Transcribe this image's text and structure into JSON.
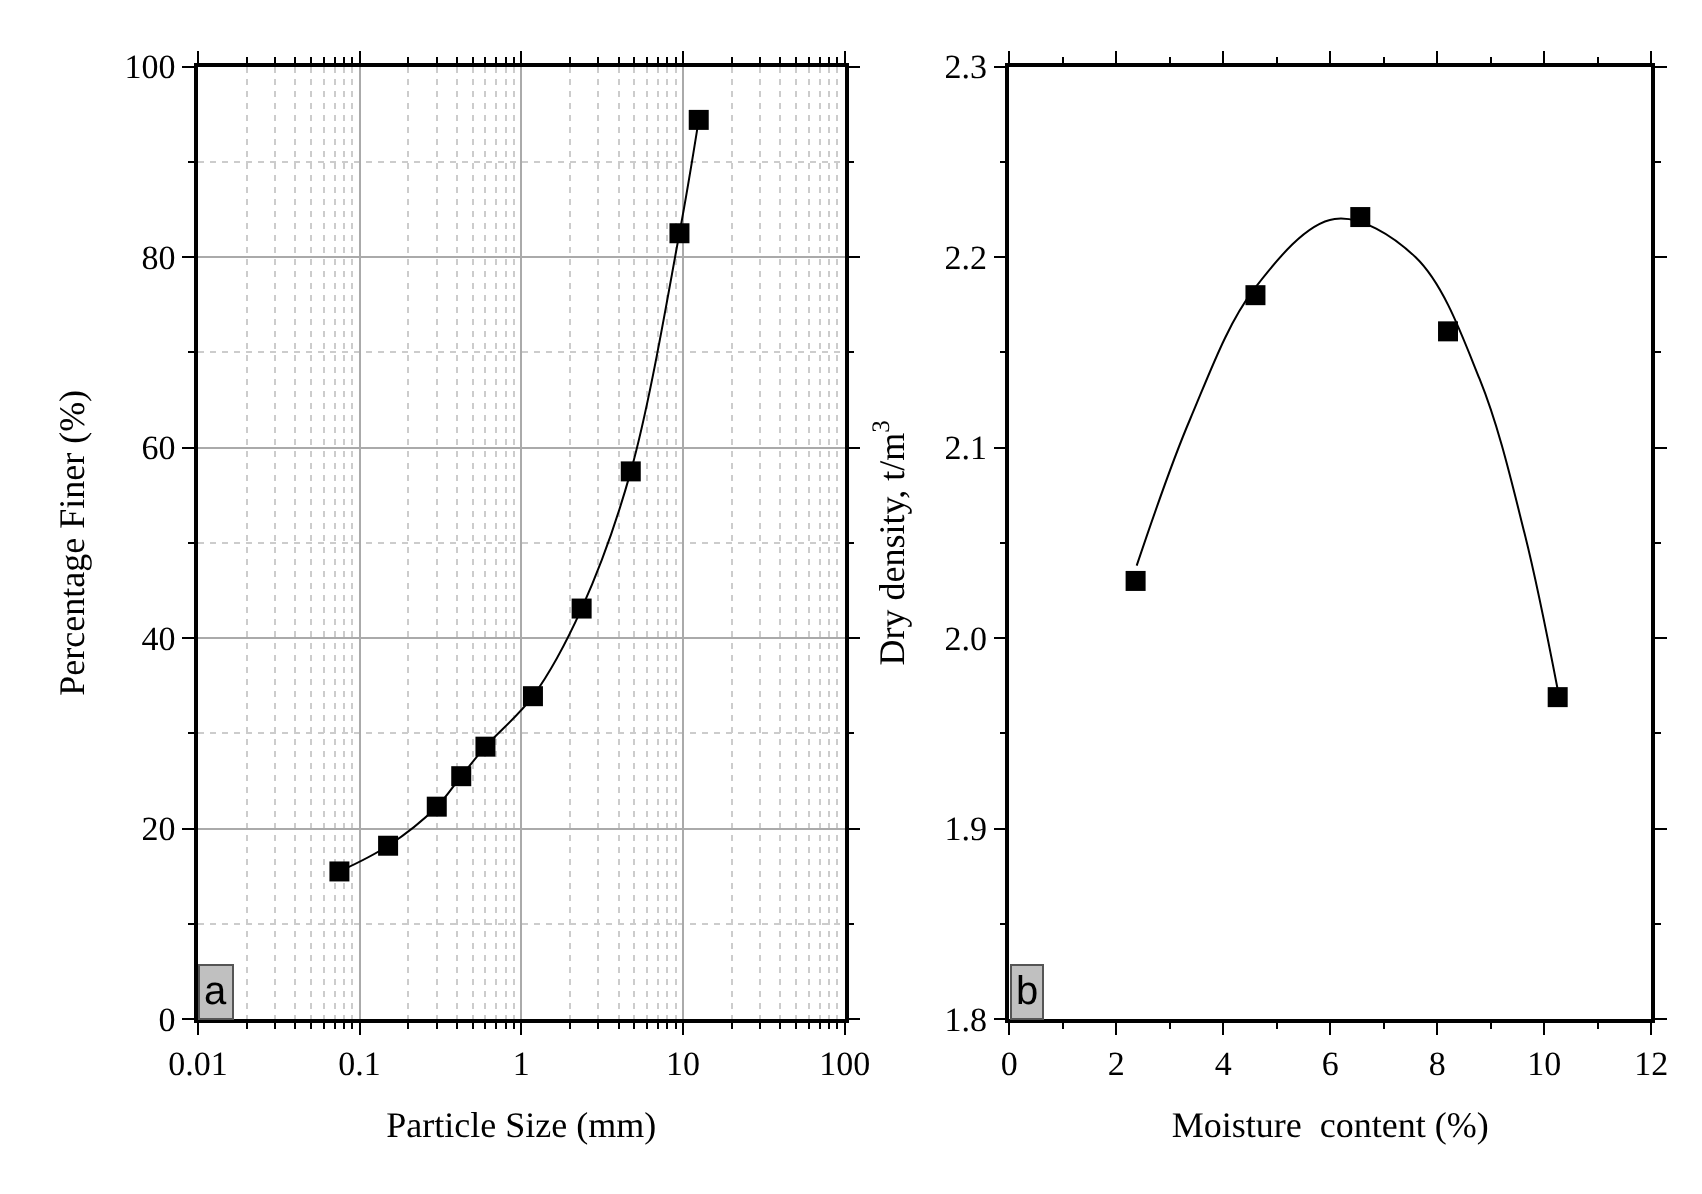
{
  "chart_data": [
    {
      "type": "line",
      "xlabel": "Particle Size (mm)",
      "ylabel": "Percentage Finer (%)",
      "log": "x",
      "x": [
        0.075,
        0.15,
        0.3,
        0.425,
        0.6,
        1.18,
        2.36,
        4.75,
        9.5,
        12.5
      ],
      "series": [
        {
          "color": "#000000",
          "values": [
            15.5,
            18.2,
            22.3,
            25.5,
            28.6,
            33.9,
            43.1,
            57.5,
            82.5,
            94.4
          ]
        }
      ],
      "marker": "square",
      "line_style": "solid",
      "xlim": [
        0.01,
        100
      ],
      "xticks": [
        0.01,
        0.1,
        1,
        10,
        100
      ],
      "ylim": [
        0,
        100
      ],
      "yticks": [
        0,
        20,
        40,
        60,
        80,
        100
      ],
      "grid": true,
      "annotations": [
        "a"
      ]
    },
    {
      "type": "scatter",
      "xlabel": "Moisture  content (%)",
      "ylabel": "Dry density, t/m$^{3}$",
      "series": [
        {
          "type": "scatter",
          "color": "#000000",
          "x": [
            2.36,
            4.6,
            6.56,
            8.2,
            10.25
          ],
          "values": [
            2.03,
            2.18,
            2.221,
            2.161,
            1.969
          ],
          "marker": "square"
        },
        {
          "type": "line",
          "color": "#000000",
          "x": [
            2.38,
            3.38,
            4.57,
            6.08,
            7.59,
            8.79,
            9.63,
            10.25
          ],
          "values": [
            2.038,
            2.115,
            2.183,
            2.22,
            2.2,
            2.136,
            2.055,
            1.973
          ],
          "marker": "none"
        }
      ],
      "xlim": [
        0,
        12
      ],
      "xticks": [
        0,
        2,
        4,
        6,
        8,
        10,
        12
      ],
      "ylim": [
        1.8,
        2.3
      ],
      "yticks": [
        1.8,
        1.9,
        {
          "value": 2.0,
          "label": "2.0"
        },
        2.1,
        2.2,
        2.3
      ],
      "annotations": [
        "b"
      ]
    }
  ]
}
